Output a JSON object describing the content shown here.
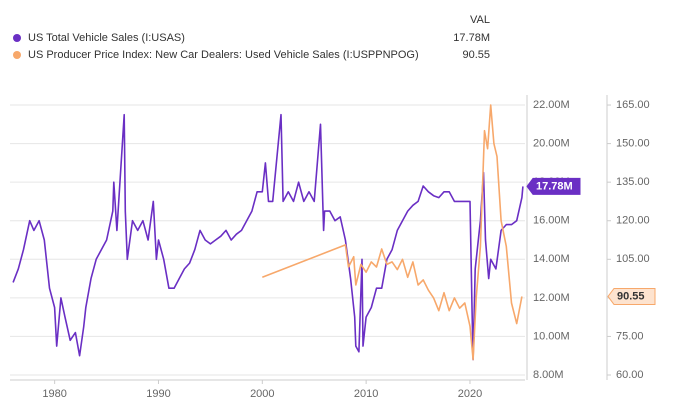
{
  "chart_data": {
    "type": "line",
    "legend_header": "VAL",
    "xlim": [
      1975.7,
      2025.3
    ],
    "xticks": [
      1980,
      1990,
      2000,
      2010,
      2020
    ],
    "ylim": [
      7.74,
      22.52
    ],
    "yticks": [
      {
        "value": 8,
        "label": "8.00M"
      },
      {
        "value": 10,
        "label": "10.00M"
      },
      {
        "value": 12,
        "label": "12.00M"
      },
      {
        "value": 14,
        "label": "14.00M"
      },
      {
        "value": 16,
        "label": "16.00M"
      },
      {
        "value": 18,
        "label": "18.00M"
      },
      {
        "value": 20,
        "label": "20.00M"
      },
      {
        "value": 22,
        "label": "22.00M"
      }
    ],
    "y2lim": [
      58.06,
      168.9
    ],
    "y2ticks": [
      {
        "value": 60,
        "label": "60.00"
      },
      {
        "value": 75,
        "label": "75.00"
      },
      {
        "value": 90,
        "label": "90.00"
      },
      {
        "value": 105,
        "label": "105.00"
      },
      {
        "value": 120,
        "label": "120.00"
      },
      {
        "value": 135,
        "label": "135.00"
      },
      {
        "value": 150,
        "label": "150.00"
      },
      {
        "value": 165,
        "label": "165.00"
      }
    ],
    "grid": true,
    "series": [
      {
        "name": "US Total Vehicle Sales (I:USAS)",
        "color": "#6a2fc4",
        "x": [
          1976.0,
          1976.5,
          1977,
          1977.6,
          1978,
          1978.5,
          1979,
          1979.5,
          1980,
          1980.2,
          1980.6,
          1981,
          1981.5,
          1982,
          1982.4,
          1982.8,
          1983,
          1983.5,
          1984,
          1984.5,
          1985,
          1985.6,
          1985.7,
          1986,
          1986.7,
          1986.8,
          1987,
          1987.5,
          1988,
          1988.5,
          1989,
          1989.5,
          1989.8,
          1990,
          1990.5,
          1991,
          1991.5,
          1992,
          1992.5,
          1993,
          1993.5,
          1994,
          1994.5,
          1995,
          1995.5,
          1996,
          1996.5,
          1997,
          1997.5,
          1998,
          1998.5,
          1999,
          1999.5,
          2000,
          2000.3,
          2000.6,
          2001,
          2001.8,
          2002,
          2002.5,
          2003,
          2003.5,
          2004,
          2004.5,
          2005,
          2005.6,
          2005.9,
          2006,
          2006.5,
          2007,
          2007.5,
          2008,
          2008.5,
          2008.9,
          2009,
          2009.3,
          2009.6,
          2009.7,
          2010,
          2010.5,
          2011,
          2011.5,
          2012,
          2012.5,
          2013,
          2013.5,
          2014,
          2014.5,
          2015,
          2015.5,
          2016,
          2016.5,
          2017,
          2017.5,
          2018,
          2018.5,
          2019,
          2019.5,
          2020,
          2020.2,
          2020.3,
          2020.5,
          2021,
          2021.3,
          2021.5,
          2021.8,
          2022,
          2022.5,
          2023,
          2023.5,
          2024,
          2024.5,
          2025,
          2025.1
        ],
        "values": [
          12.8,
          13.5,
          14.5,
          16.0,
          15.5,
          16.0,
          15.0,
          12.5,
          11.5,
          9.5,
          12.0,
          11.0,
          9.8,
          10.2,
          9.0,
          10.5,
          11.5,
          13.0,
          14.0,
          14.5,
          15.0,
          16.5,
          18.0,
          15.5,
          21.5,
          16.5,
          14.0,
          16.0,
          15.5,
          16.0,
          15.0,
          17.0,
          14.0,
          15.0,
          14.0,
          12.5,
          12.5,
          13.0,
          13.5,
          13.8,
          14.5,
          15.5,
          15.0,
          14.8,
          15.0,
          15.2,
          15.5,
          15.0,
          15.3,
          15.5,
          16.0,
          16.5,
          17.5,
          17.5,
          19.0,
          17.0,
          17.0,
          21.5,
          17.0,
          17.5,
          17.0,
          18.0,
          17.0,
          17.5,
          17.0,
          21.0,
          15.5,
          16.5,
          16.5,
          16.0,
          16.2,
          15.0,
          13.0,
          11.0,
          9.5,
          9.2,
          14.0,
          9.5,
          11.0,
          11.5,
          12.5,
          12.5,
          14.0,
          14.5,
          15.5,
          16.0,
          16.5,
          16.8,
          17.0,
          17.8,
          17.5,
          17.3,
          17.2,
          17.5,
          17.5,
          17.0,
          17.0,
          17.0,
          17.0,
          11.5,
          8.8,
          13.5,
          16.0,
          18.5,
          15.0,
          13.0,
          14.0,
          13.5,
          15.5,
          15.8,
          15.8,
          16.0,
          17.2,
          17.78
        ],
        "value_labels": [
          null,
          null,
          null,
          null,
          null,
          null,
          null,
          null,
          null,
          null,
          null,
          null,
          null,
          null,
          null,
          null,
          null,
          null,
          null,
          null,
          null,
          null,
          null,
          null,
          null,
          null,
          null,
          null,
          null,
          null,
          null,
          null,
          null,
          null,
          null,
          null,
          null,
          null,
          null,
          null,
          null,
          null,
          null,
          null,
          null,
          null,
          null,
          null,
          null,
          null,
          null,
          null,
          null,
          null,
          null,
          null,
          null,
          null,
          null,
          null,
          null,
          null,
          null,
          null,
          null,
          null,
          null,
          null,
          null,
          null,
          null,
          null,
          null,
          null,
          null,
          null,
          null,
          null,
          null,
          null,
          null,
          null,
          null,
          null,
          null,
          null,
          null,
          null,
          null,
          null,
          null,
          null,
          null,
          null,
          null,
          null,
          null,
          null,
          null,
          null,
          null,
          null,
          null,
          null,
          null,
          null,
          null,
          null,
          null,
          null,
          null,
          null,
          null,
          "17.78M"
        ]
      },
      {
        "name": "US Producer Price Index: New Car Dealers: Used Vehicle Sales (I:USPPNPOG)",
        "color": "#f7a86b",
        "axis": "y2",
        "x": [
          2000,
          2008,
          2008.3,
          2008.8,
          2009,
          2009.5,
          2010,
          2010.5,
          2011,
          2011.5,
          2012,
          2012.5,
          2013,
          2013.5,
          2014,
          2014.5,
          2015,
          2015.5,
          2016,
          2016.5,
          2017,
          2017.5,
          2018,
          2018.5,
          2019,
          2019.5,
          2020,
          2020.3,
          2020.6,
          2021,
          2021.4,
          2021.7,
          2022,
          2022.3,
          2022.6,
          2023,
          2023.5,
          2024,
          2024.5,
          2025
        ],
        "values": [
          98,
          110.6,
          102,
          106,
          95,
          103,
          100,
          104,
          102,
          109,
          103,
          104,
          101,
          105,
          98,
          104,
          95,
          97,
          93,
          90,
          85,
          92,
          85,
          90,
          86,
          88,
          79,
          66,
          90,
          110,
          155,
          148,
          165,
          150,
          145,
          120,
          110,
          88,
          80,
          90.55
        ]
      }
    ]
  }
}
